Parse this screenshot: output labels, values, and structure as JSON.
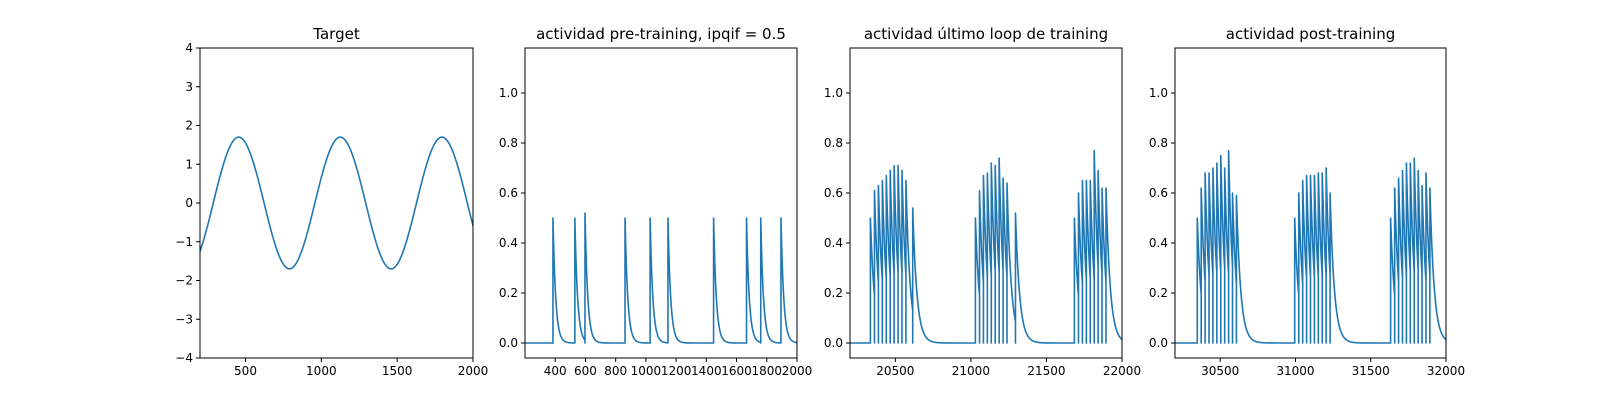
{
  "figure": {
    "background": "#ffffff",
    "line_color": "#1f77b4"
  },
  "chart_data": [
    {
      "type": "line",
      "title": "Target",
      "xlabel": "",
      "ylabel": "",
      "xlim": [
        200,
        2000
      ],
      "ylim": [
        -4,
        4
      ],
      "xticks": [
        500,
        1000,
        1500,
        2000
      ],
      "xtick_labels": [
        "500",
        "1000",
        "1500",
        "2000"
      ],
      "yticks": [
        -4,
        -3,
        -2,
        -1,
        0,
        1,
        2,
        3,
        4
      ],
      "ytick_labels": [
        "−4",
        "−3",
        "−2",
        "−1",
        "0",
        "1",
        "2",
        "3",
        "4"
      ],
      "grid": false,
      "series": [
        {
          "kind": "sine",
          "amplitude": 1.7,
          "period": 670,
          "peak_x": [
            455,
            1125,
            1795
          ],
          "trough_x": [
            790,
            1460
          ],
          "x_range": [
            200,
            2000
          ],
          "color": "#1f77b4"
        }
      ]
    },
    {
      "type": "line",
      "title": "actividad pre-training, ipqif = 0.5",
      "xlabel": "",
      "ylabel": "",
      "xlim": [
        200,
        2000
      ],
      "ylim": [
        -0.06,
        1.18
      ],
      "xticks": [
        400,
        600,
        800,
        1000,
        1200,
        1400,
        1600,
        1800,
        2000
      ],
      "xtick_labels": [
        "400",
        "600",
        "800",
        "1000",
        "1200",
        "1400",
        "1600",
        "1800",
        "2000"
      ],
      "yticks": [
        0,
        0.2,
        0.4,
        0.6,
        0.8,
        1.0
      ],
      "ytick_labels": [
        "0.0",
        "0.2",
        "0.4",
        "0.6",
        "0.8",
        "1.0"
      ],
      "grid": false,
      "series": [
        {
          "kind": "spike_train",
          "color": "#1f77b4",
          "baseline": 0.0,
          "decay_tau": 18,
          "spikes": [
            {
              "t": 385,
              "peak": 0.5
            },
            {
              "t": 530,
              "peak": 0.5
            },
            {
              "t": 597,
              "peak": 0.52
            },
            {
              "t": 862,
              "peak": 0.5
            },
            {
              "t": 1028,
              "peak": 0.5
            },
            {
              "t": 1146,
              "peak": 0.5
            },
            {
              "t": 1448,
              "peak": 0.5
            },
            {
              "t": 1666,
              "peak": 0.5
            },
            {
              "t": 1760,
              "peak": 0.5
            },
            {
              "t": 1894,
              "peak": 0.5
            }
          ]
        }
      ]
    },
    {
      "type": "line",
      "title": "actividad último loop de training",
      "xlabel": "",
      "ylabel": "",
      "xlim": [
        20200,
        22000
      ],
      "ylim": [
        -0.06,
        1.18
      ],
      "xticks": [
        20500,
        21000,
        21500,
        22000
      ],
      "xtick_labels": [
        "20500",
        "21000",
        "21500",
        "22000"
      ],
      "yticks": [
        0,
        0.2,
        0.4,
        0.6,
        0.8,
        1.0
      ],
      "ytick_labels": [
        "0.0",
        "0.2",
        "0.4",
        "0.6",
        "0.8",
        "1.0"
      ],
      "grid": false,
      "series": [
        {
          "kind": "spike_train",
          "color": "#1f77b4",
          "baseline": 0.0,
          "decay_tau": 28,
          "spikes": [
            {
              "t": 20335,
              "peak": 0.5
            },
            {
              "t": 20362,
              "peak": 0.61
            },
            {
              "t": 20388,
              "peak": 0.63
            },
            {
              "t": 20414,
              "peak": 0.65
            },
            {
              "t": 20440,
              "peak": 0.67
            },
            {
              "t": 20466,
              "peak": 0.69
            },
            {
              "t": 20492,
              "peak": 0.71
            },
            {
              "t": 20518,
              "peak": 0.71
            },
            {
              "t": 20544,
              "peak": 0.69
            },
            {
              "t": 20570,
              "peak": 0.65
            },
            {
              "t": 20615,
              "peak": 0.54
            },
            {
              "t": 21030,
              "peak": 0.5
            },
            {
              "t": 21057,
              "peak": 0.61
            },
            {
              "t": 21083,
              "peak": 0.67
            },
            {
              "t": 21109,
              "peak": 0.68
            },
            {
              "t": 21135,
              "peak": 0.72
            },
            {
              "t": 21161,
              "peak": 0.71
            },
            {
              "t": 21187,
              "peak": 0.74
            },
            {
              "t": 21213,
              "peak": 0.66
            },
            {
              "t": 21239,
              "peak": 0.64
            },
            {
              "t": 21295,
              "peak": 0.52
            },
            {
              "t": 21685,
              "peak": 0.5
            },
            {
              "t": 21712,
              "peak": 0.6
            },
            {
              "t": 21738,
              "peak": 0.65
            },
            {
              "t": 21764,
              "peak": 0.65
            },
            {
              "t": 21790,
              "peak": 0.65
            },
            {
              "t": 21816,
              "peak": 0.77
            },
            {
              "t": 21842,
              "peak": 0.69
            },
            {
              "t": 21868,
              "peak": 0.62
            },
            {
              "t": 21894,
              "peak": 0.62
            }
          ]
        }
      ]
    },
    {
      "type": "line",
      "title": "actividad post-training",
      "xlabel": "",
      "ylabel": "",
      "xlim": [
        30200,
        32000
      ],
      "ylim": [
        -0.06,
        1.18
      ],
      "xticks": [
        30500,
        31000,
        31500,
        32000
      ],
      "xtick_labels": [
        "30500",
        "31000",
        "31500",
        "32000"
      ],
      "yticks": [
        0,
        0.2,
        0.4,
        0.6,
        0.8,
        1.0
      ],
      "ytick_labels": [
        "0.0",
        "0.2",
        "0.4",
        "0.6",
        "0.8",
        "1.0"
      ],
      "grid": false,
      "series": [
        {
          "kind": "spike_train",
          "color": "#1f77b4",
          "baseline": 0.0,
          "decay_tau": 28,
          "spikes": [
            {
              "t": 30348,
              "peak": 0.5
            },
            {
              "t": 30374,
              "peak": 0.62
            },
            {
              "t": 30400,
              "peak": 0.68
            },
            {
              "t": 30426,
              "peak": 0.68
            },
            {
              "t": 30452,
              "peak": 0.7
            },
            {
              "t": 30478,
              "peak": 0.72
            },
            {
              "t": 30504,
              "peak": 0.75
            },
            {
              "t": 30530,
              "peak": 0.7
            },
            {
              "t": 30556,
              "peak": 0.77
            },
            {
              "t": 30582,
              "peak": 0.6
            },
            {
              "t": 30608,
              "peak": 0.59
            },
            {
              "t": 30995,
              "peak": 0.5
            },
            {
              "t": 31022,
              "peak": 0.6
            },
            {
              "t": 31048,
              "peak": 0.65
            },
            {
              "t": 31074,
              "peak": 0.67
            },
            {
              "t": 31100,
              "peak": 0.67
            },
            {
              "t": 31126,
              "peak": 0.67
            },
            {
              "t": 31152,
              "peak": 0.68
            },
            {
              "t": 31178,
              "peak": 0.68
            },
            {
              "t": 31204,
              "peak": 0.7
            },
            {
              "t": 31230,
              "peak": 0.6
            },
            {
              "t": 31632,
              "peak": 0.5
            },
            {
              "t": 31659,
              "peak": 0.62
            },
            {
              "t": 31685,
              "peak": 0.66
            },
            {
              "t": 31711,
              "peak": 0.69
            },
            {
              "t": 31737,
              "peak": 0.72
            },
            {
              "t": 31763,
              "peak": 0.72
            },
            {
              "t": 31789,
              "peak": 0.74
            },
            {
              "t": 31815,
              "peak": 0.69
            },
            {
              "t": 31841,
              "peak": 0.63
            },
            {
              "t": 31867,
              "peak": 0.68
            },
            {
              "t": 31893,
              "peak": 0.62
            }
          ]
        }
      ]
    }
  ]
}
